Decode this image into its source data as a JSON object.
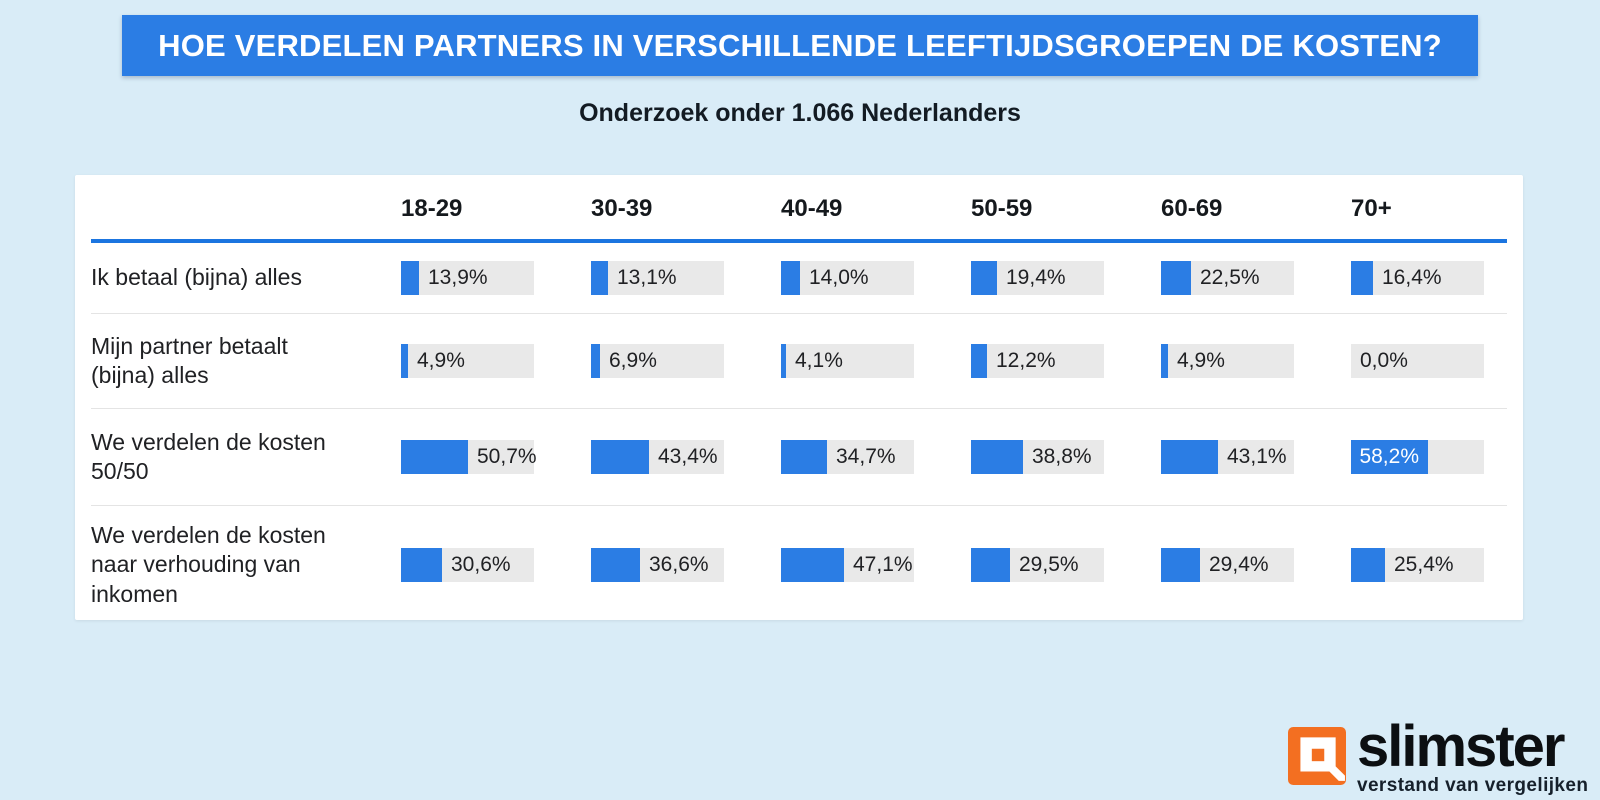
{
  "page": {
    "background_color": "#d9ecf7"
  },
  "header": {
    "title": "HOE VERDELEN PARTNERS IN VERSCHILLENDE LEEFTIJDSGROEPEN DE KOSTEN?",
    "subtitle": "Onderzoek onder 1.066 Nederlanders",
    "banner_color": "#2b7de4"
  },
  "chart_data": {
    "type": "bar",
    "orientation": "horizontal",
    "unit": "%",
    "value_format": "comma-decimal",
    "xlim": [
      0,
      100
    ],
    "grid": false,
    "columns": [
      "18-29",
      "30-39",
      "40-49",
      "50-59",
      "60-69",
      "70+"
    ],
    "rows": [
      {
        "label": "Ik betaal (bijna) alles",
        "values": [
          13.9,
          13.1,
          14.0,
          19.4,
          22.5,
          16.4
        ]
      },
      {
        "label": "Mijn partner betaalt\n(bijna) alles",
        "values": [
          4.9,
          6.9,
          4.1,
          12.2,
          4.9,
          0.0
        ]
      },
      {
        "label": "We verdelen de kosten\n50/50",
        "values": [
          50.7,
          43.4,
          34.7,
          38.8,
          43.1,
          58.2
        ]
      },
      {
        "label": "We verdelen de kosten\nnaar verhouding van\ninkomen",
        "values": [
          30.6,
          36.6,
          47.1,
          29.5,
          29.4,
          25.4
        ]
      }
    ],
    "colors": {
      "bar_fill": "#2b7de4",
      "bar_track": "#e9e9e9",
      "header_rule": "#1b75e0"
    }
  },
  "branding": {
    "name": "slimster",
    "tagline": "verstand van vergelijken",
    "logo_color": "#f36f21"
  }
}
